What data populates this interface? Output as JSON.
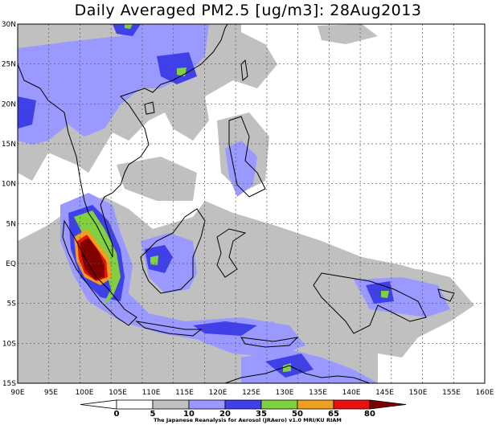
{
  "title": "Daily Averaged PM2.5 [ug/m3]: 28Aug2013",
  "map": {
    "lon_labels": [
      "90E",
      "95E",
      "100E",
      "105E",
      "110E",
      "115E",
      "120E",
      "125E",
      "130E",
      "135E",
      "140E",
      "145E",
      "150E",
      "155E",
      "160E"
    ],
    "lat_labels": [
      "30N",
      "25N",
      "20N",
      "15N",
      "10N",
      "5N",
      "EQ",
      "5S",
      "10S",
      "15S"
    ],
    "lon_values": [
      90,
      95,
      100,
      105,
      110,
      115,
      120,
      125,
      130,
      135,
      140,
      145,
      150,
      155,
      160
    ],
    "lat_values": [
      30,
      25,
      20,
      15,
      10,
      5,
      0,
      -5,
      -10,
      -15
    ]
  },
  "legend": {
    "levels": [
      "0",
      "5",
      "10",
      "20",
      "35",
      "50",
      "65",
      "80"
    ],
    "colors": [
      "#ffffff",
      "#ffffff",
      "#c0c0c0",
      "#9999ff",
      "#4040e8",
      "#80d040",
      "#f0a020",
      "#e81010",
      "#800000"
    ],
    "credit": "The Japanese Reanalysis for Aerosol (JRAero) v1.0 MRI/KU RIAM"
  },
  "colors": {
    "grid": "#555555",
    "coast": "#000000",
    "frame": "#000000"
  }
}
